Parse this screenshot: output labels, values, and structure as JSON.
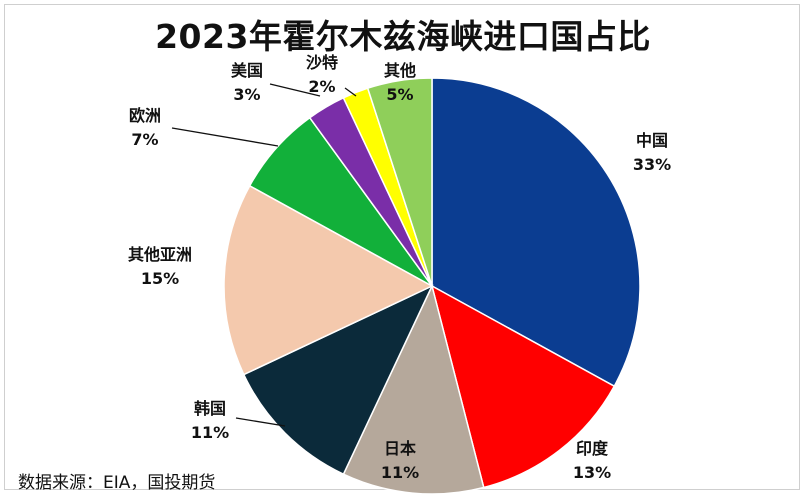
{
  "chart_data": {
    "type": "pie",
    "title": "2023年霍尔木兹海峡进口国占比",
    "source": "数据来源：EIA，国投期货",
    "slices": [
      {
        "label": "中国",
        "value": 33,
        "pct": "33%",
        "color": "#0b3d91"
      },
      {
        "label": "印度",
        "value": 13,
        "pct": "13%",
        "color": "#ff0000"
      },
      {
        "label": "日本",
        "value": 11,
        "pct": "11%",
        "color": "#b5a89b"
      },
      {
        "label": "韩国",
        "value": 11,
        "pct": "11%",
        "color": "#0b2a3a"
      },
      {
        "label": "其他亚洲",
        "value": 15,
        "pct": "15%",
        "color": "#f4c9ad"
      },
      {
        "label": "欧洲",
        "value": 7,
        "pct": "7%",
        "color": "#12b03a"
      },
      {
        "label": "美国",
        "value": 3,
        "pct": "3%",
        "color": "#7a2ea8"
      },
      {
        "label": "沙特",
        "value": 2,
        "pct": "2%",
        "color": "#ffff00"
      },
      {
        "label": "其他",
        "value": 5,
        "pct": "5%",
        "color": "#8fcf5a"
      }
    ]
  }
}
